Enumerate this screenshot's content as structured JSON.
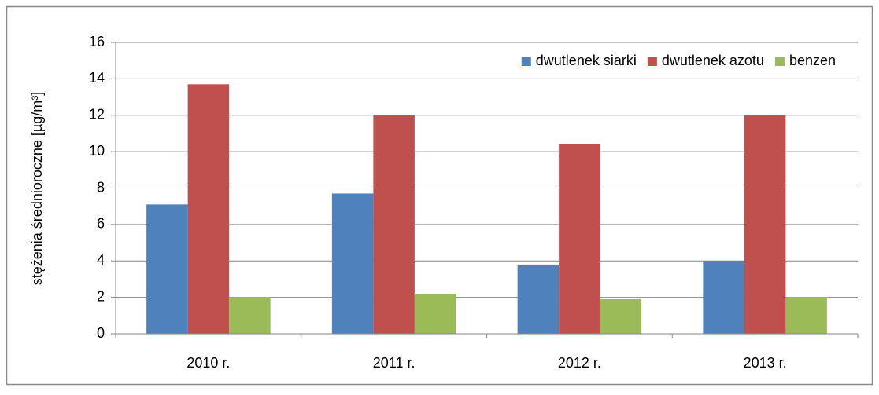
{
  "chart_data": {
    "type": "bar",
    "y_label": "stężenia średnioroczne [µg/m³]",
    "categories": [
      "2010 r.",
      "2011 r.",
      "2012 r.",
      "2013 r."
    ],
    "series": [
      {
        "name": "dwutlenek siarki",
        "color": "#4f81bd",
        "values": [
          7.1,
          7.7,
          3.8,
          4.0
        ]
      },
      {
        "name": "dwutlenek azotu",
        "color": "#c0504d",
        "values": [
          13.7,
          12.0,
          10.4,
          12.0
        ]
      },
      {
        "name": "benzen",
        "color": "#9bbb59",
        "values": [
          2.0,
          2.2,
          1.9,
          2.0
        ]
      }
    ],
    "ylim": [
      0,
      16
    ],
    "yticks": [
      0,
      2,
      4,
      6,
      8,
      10,
      12,
      14,
      16
    ],
    "grid": true,
    "legend": "upper right"
  }
}
